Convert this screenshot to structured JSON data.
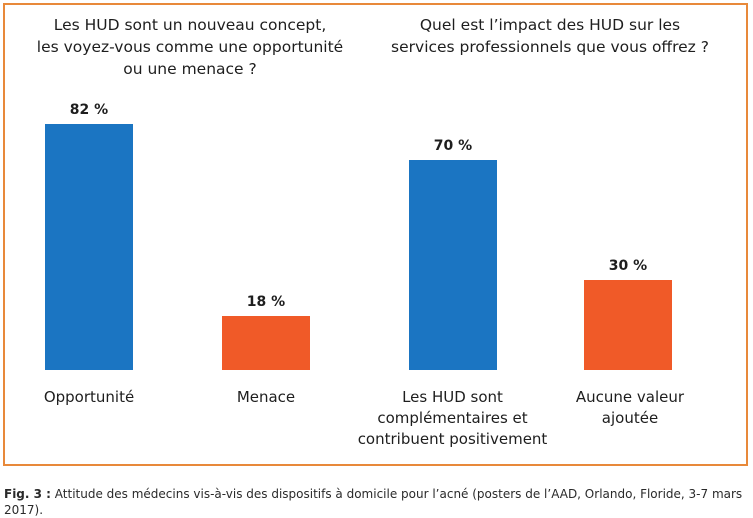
{
  "chart_data": [
    {
      "type": "bar",
      "title": "Les HUD sont un nouveau concept,\nles voyez-vous comme une opportunité\nou une menace ?",
      "categories": [
        "Opportunité",
        "Menace"
      ],
      "values": [
        82,
        18
      ],
      "data_labels": [
        "82 %",
        "18 %"
      ],
      "colors": [
        "#1b75c2",
        "#f05a28"
      ],
      "ylim": [
        0,
        100
      ],
      "grid": false,
      "legend": "none"
    },
    {
      "type": "bar",
      "title": "Quel est l’impact des HUD sur les\nservices professionnels que vous offrez ?",
      "categories": [
        "Les HUD sont\ncomplémentaires et\ncontribuent positivement",
        "Aucune valeur\najoutée"
      ],
      "values": [
        70,
        30
      ],
      "data_labels": [
        "70 %",
        "30 %"
      ],
      "colors": [
        "#1b75c2",
        "#f05a28"
      ],
      "ylim": [
        0,
        100
      ],
      "grid": false,
      "legend": "none"
    }
  ],
  "caption": {
    "label": "Fig. 3 :",
    "text": " Attitude des médecins vis-à-vis des dispositifs à domicile pour l’acné (posters de l’AAD, Orlando, Floride, 3-7 mars 2017)."
  },
  "colors": {
    "frame": "#e8893a",
    "blue": "#1b75c2",
    "orange": "#f05a28"
  }
}
